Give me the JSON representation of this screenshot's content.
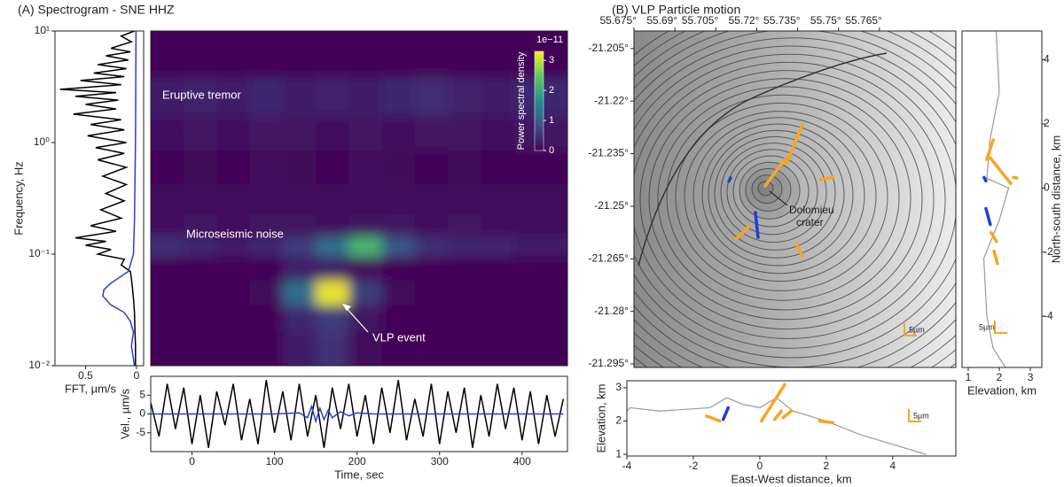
{
  "chart_data": [
    {
      "type": "line",
      "orientation": "horizontal",
      "xlabel": "FFT, µm/s",
      "ylabel": "Frequency, Hz",
      "xlim": [
        0.8,
        -0.07
      ],
      "xticks": [
        0.5,
        0
      ],
      "ylim": [
        0.01,
        10
      ],
      "log_y": true,
      "yticks": [
        {
          "value": 0.01,
          "label": "10⁻²"
        },
        {
          "value": 0.1,
          "label": "10⁻¹"
        },
        {
          "value": 1,
          "label": "10⁰"
        },
        {
          "value": 10,
          "label": "10¹"
        }
      ],
      "series": [
        {
          "color": "#000000",
          "y": [
            10,
            9,
            8,
            7,
            6.5,
            6,
            5.5,
            5,
            4.6,
            4.2,
            3.9,
            3.6,
            3.3,
            3.0,
            2.8,
            2.6,
            2.4,
            2.2,
            2.0,
            1.8,
            1.6,
            1.45,
            1.3,
            1.15,
            1.0,
            0.9,
            0.8,
            0.7,
            0.6,
            0.5,
            0.42,
            0.35,
            0.3,
            0.25,
            0.21,
            0.18,
            0.16,
            0.14,
            0.13,
            0.12,
            0.11,
            0.1,
            0.09,
            0.08,
            0.07,
            0.06,
            0.05,
            0.04,
            0.03,
            0.02,
            0.015,
            0.01
          ],
          "values": [
            0.02,
            0.15,
            0.05,
            0.25,
            0.06,
            0.3,
            0.08,
            0.38,
            0.1,
            0.42,
            0.12,
            0.55,
            0.15,
            0.75,
            0.2,
            0.6,
            0.18,
            0.5,
            0.2,
            0.62,
            0.15,
            0.45,
            0.12,
            0.48,
            0.1,
            0.4,
            0.12,
            0.38,
            0.1,
            0.33,
            0.1,
            0.3,
            0.12,
            0.35,
            0.15,
            0.45,
            0.2,
            0.6,
            0.3,
            0.5,
            0.25,
            0.38,
            0.12,
            0.15,
            0.06,
            0.05,
            0.04,
            0.03,
            0.02,
            0.015,
            0.01,
            0.01
          ]
        },
        {
          "color": "#2a3fcf",
          "y": [
            10,
            1,
            0.2,
            0.1,
            0.07,
            0.055,
            0.048,
            0.042,
            0.035,
            0.03,
            0.025,
            0.02,
            0.015,
            0.01
          ],
          "values": [
            0.005,
            0.01,
            0.02,
            0.03,
            0.08,
            0.25,
            0.32,
            0.33,
            0.25,
            0.12,
            0.06,
            0.03,
            0.05,
            0.02
          ]
        }
      ]
    },
    {
      "type": "heatmap",
      "title": "(A) Spectrogram - SNE HHZ",
      "xlim": [
        -50,
        455
      ],
      "ylim": [
        0.01,
        10
      ],
      "log_y": true,
      "x": [
        -30,
        10,
        50,
        90,
        130,
        170,
        210,
        250,
        290,
        330,
        370,
        410
      ],
      "y": [
        6,
        2.5,
        1.2,
        0.6,
        0.3,
        0.17,
        0.12,
        0.075,
        0.045,
        0.027,
        0.015
      ],
      "values": [
        [
          0.05,
          0.05,
          0.05,
          0.05,
          0.05,
          0.05,
          0.05,
          0.05,
          0.05,
          0.05,
          0.05,
          0.05
        ],
        [
          0.3,
          0.35,
          0.3,
          0.4,
          0.3,
          0.35,
          0.3,
          0.4,
          0.45,
          0.35,
          0.3,
          0.4
        ],
        [
          0.15,
          0.2,
          0.15,
          0.2,
          0.2,
          0.15,
          0.2,
          0.15,
          0.2,
          0.2,
          0.15,
          0.2
        ],
        [
          0.05,
          0.08,
          0.05,
          0.1,
          0.08,
          0.05,
          0.1,
          0.08,
          0.05,
          0.08,
          0.05,
          0.05
        ],
        [
          0.1,
          0.1,
          0.1,
          0.1,
          0.1,
          0.1,
          0.1,
          0.15,
          0.1,
          0.1,
          0.1,
          0.1
        ],
        [
          0.15,
          0.2,
          0.15,
          0.2,
          0.2,
          0.15,
          0.2,
          0.2,
          0.15,
          0.2,
          0.15,
          0.15
        ],
        [
          0.5,
          0.4,
          0.3,
          0.4,
          0.6,
          1.2,
          2.2,
          0.9,
          0.5,
          0.4,
          0.4,
          0.3
        ],
        [
          0.05,
          0.05,
          0.05,
          0.05,
          0.3,
          0.3,
          0.1,
          0.05,
          0.05,
          0.05,
          0.05,
          0.05
        ],
        [
          0.05,
          0.05,
          0.05,
          0.1,
          1.2,
          3.2,
          0.6,
          0.1,
          0.05,
          0.05,
          0.05,
          0.05
        ],
        [
          0.05,
          0.05,
          0.05,
          0.05,
          0.4,
          0.6,
          0.2,
          0.05,
          0.05,
          0.05,
          0.05,
          0.05
        ],
        [
          0.05,
          0.05,
          0.05,
          0.05,
          0.3,
          0.5,
          0.1,
          0.05,
          0.05,
          0.05,
          0.05,
          0.05
        ]
      ],
      "zlim": [
        0,
        3.3
      ],
      "zticks": [
        0,
        1,
        2,
        3
      ],
      "colorbar_label": "Power spectral density",
      "colorbar_scale": "1e−11",
      "annotations": [
        "Eruptive tremor",
        "Microseismic noise",
        "VLP event"
      ]
    },
    {
      "type": "line",
      "xlabel": "Time, sec",
      "ylabel": "Vel., µm/s",
      "xlim": [
        -50,
        455
      ],
      "xticks": [
        0,
        100,
        200,
        300,
        400
      ],
      "ylim": [
        -10,
        10
      ],
      "yticks": [
        -5,
        0,
        5
      ],
      "series": [
        {
          "color": "#000000",
          "x": [
            -50,
            -40,
            -30,
            -20,
            -10,
            0,
            10,
            20,
            30,
            40,
            50,
            60,
            70,
            80,
            90,
            100,
            110,
            120,
            130,
            140,
            150,
            160,
            170,
            180,
            190,
            200,
            210,
            220,
            230,
            240,
            250,
            260,
            270,
            280,
            290,
            300,
            310,
            320,
            330,
            340,
            350,
            360,
            370,
            380,
            390,
            400,
            410,
            420,
            430,
            440,
            450
          ],
          "values": [
            3,
            -6,
            8,
            -4,
            7,
            -8,
            5,
            -9,
            6,
            -3,
            8,
            -7,
            4,
            -8,
            9,
            -5,
            6,
            -7,
            8,
            -6,
            5,
            -9,
            7,
            -4,
            8,
            -6,
            5,
            -8,
            7,
            -5,
            9,
            -7,
            4,
            -6,
            8,
            -8,
            6,
            -5,
            7,
            -9,
            5,
            -6,
            8,
            -4,
            7,
            -7,
            6,
            -8,
            5,
            -6,
            4
          ]
        },
        {
          "color": "#2a3fcf",
          "x": [
            -50,
            100,
            130,
            140,
            145,
            150,
            155,
            160,
            165,
            170,
            180,
            190,
            200,
            220,
            450
          ],
          "values": [
            0,
            0,
            0.3,
            -1,
            2,
            -2,
            1.5,
            -1.5,
            1,
            -1,
            0.6,
            -0.5,
            0.3,
            0,
            0
          ]
        }
      ]
    },
    {
      "type": "map",
      "title": "(B) VLP Particle motion",
      "xlim": [
        55.675,
        55.793
      ],
      "ylim": [
        -21.296,
        -21.2
      ],
      "xticks": [
        {
          "value": 55.675,
          "label": "55.675°"
        },
        {
          "value": 55.69,
          "label": "55.69°"
        },
        {
          "value": 55.705,
          "label": "55.705°"
        },
        {
          "value": 55.72,
          "label": "55.72°"
        },
        {
          "value": 55.735,
          "label": "55.735°"
        },
        {
          "value": 55.75,
          "label": "55.75°"
        },
        {
          "value": 55.765,
          "label": "55.765°"
        }
      ],
      "yticks": [
        {
          "value": -21.205,
          "label": "-21.205°"
        },
        {
          "value": -21.22,
          "label": "-21.22°"
        },
        {
          "value": -21.235,
          "label": "-21.235°"
        },
        {
          "value": -21.25,
          "label": "-21.25°"
        },
        {
          "value": -21.265,
          "label": "-21.265°"
        },
        {
          "value": -21.28,
          "label": "-21.28°"
        },
        {
          "value": -21.295,
          "label": "-21.295°"
        }
      ],
      "annotation": [
        "Dolomieu",
        "crater"
      ],
      "scale_label": "5µm",
      "series": [
        {
          "color": "#f5a623",
          "segments": [
            {
              "x": [
                55.7309,
                55.7368
              ],
              "y": [
                -21.2379,
                -21.2265
              ]
            },
            {
              "x": [
                55.7231,
                55.7303
              ],
              "y": [
                -21.2442,
                -21.2366
              ]
            },
            {
              "x": [
                55.7433,
                55.7481
              ],
              "y": [
                -21.2424,
                -21.2417
              ]
            },
            {
              "x": [
                55.7124,
                55.7173
              ],
              "y": [
                -21.2594,
                -21.2556
              ]
            },
            {
              "x": [
                55.7345,
                55.7368
              ],
              "y": [
                -21.2606,
                -21.2644
              ]
            }
          ]
        },
        {
          "color": "#1f3fd6",
          "segments": [
            {
              "x": [
                55.7195,
                55.7205
              ],
              "y": [
                -21.2518,
                -21.2589
              ]
            },
            {
              "x": [
                55.7098,
                55.7104
              ],
              "y": [
                -21.2429,
                -21.2419
              ]
            }
          ]
        }
      ]
    },
    {
      "type": "line",
      "xlabel": "Elevation, km",
      "ylabel": "North-south distance, km",
      "xlim": [
        0.8,
        3.37
      ],
      "xticks": [
        1,
        2,
        3
      ],
      "ylim": [
        -5.6,
        4.9
      ],
      "yticks": [
        -4,
        -2,
        0,
        2,
        4
      ],
      "scale_label": "5µm",
      "series": [
        {
          "color": "#999999",
          "x": [
            1.9,
            2.0,
            1.7,
            1.6,
            2.3,
            2.0,
            1.5,
            1.6,
            1.8,
            2.2
          ],
          "values": [
            4.9,
            3.0,
            1.5,
            0.3,
            0,
            -1,
            -2.2,
            -4,
            -5,
            -5.6
          ]
        },
        {
          "color": "#f5a623",
          "segments": [
            {
              "x": [
                1.6,
                1.8
              ],
              "y": [
                0.89,
                1.5
              ]
            },
            {
              "x": [
                1.71,
                2.37
              ],
              "y": [
                0.94,
                0.14
              ]
            },
            {
              "x": [
                2.46,
                2.57
              ],
              "y": [
                0.33,
                0.31
              ]
            },
            {
              "x": [
                1.74,
                1.91
              ],
              "y": [
                -1.39,
                -1.67
              ]
            },
            {
              "x": [
                1.83,
                1.94
              ],
              "y": [
                -1.97,
                -2.36
              ]
            }
          ]
        },
        {
          "color": "#1f3fd6",
          "segments": [
            {
              "x": [
                1.57,
                1.71
              ],
              "y": [
                -0.64,
                -1.14
              ]
            },
            {
              "x": [
                1.51,
                1.57
              ],
              "y": [
                0.33,
                0.22
              ]
            }
          ]
        }
      ]
    },
    {
      "type": "line",
      "xlabel": "East-West distance, km",
      "ylabel": "Elevation, km",
      "xlim": [
        -4,
        5.9
      ],
      "xticks": [
        -4,
        -2,
        0,
        2,
        4
      ],
      "ylim": [
        0.95,
        3.21
      ],
      "yticks": [
        1,
        2,
        3
      ],
      "scale_label": "5µm",
      "series": [
        {
          "color": "#999999",
          "x": [
            -4,
            -3.9,
            -3,
            -1.5,
            -1.0,
            -0.5,
            0,
            0.5,
            1,
            2,
            3,
            4,
            5
          ],
          "values": [
            2.3,
            2.4,
            2.3,
            2.4,
            2.7,
            2.5,
            2.4,
            2.7,
            2.3,
            2.0,
            1.6,
            1.3,
            1.0
          ]
        },
        {
          "color": "#f5a623",
          "segments": [
            {
              "x": [
                0.05,
                0.75
              ],
              "y": [
                2.0,
                3.1
              ]
            },
            {
              "x": [
                0.45,
                0.65
              ],
              "y": [
                2.05,
                2.3
              ]
            },
            {
              "x": [
                0.7,
                0.95
              ],
              "y": [
                2.1,
                2.3
              ]
            },
            {
              "x": [
                -1.6,
                -1.2
              ],
              "y": [
                2.15,
                2.0
              ]
            },
            {
              "x": [
                1.8,
                2.2
              ],
              "y": [
                2.0,
                1.95
              ]
            }
          ]
        },
        {
          "color": "#1f3fd6",
          "segments": [
            {
              "x": [
                -1.1,
                -0.95
              ],
              "y": [
                2.05,
                2.4
              ]
            }
          ]
        }
      ]
    }
  ]
}
